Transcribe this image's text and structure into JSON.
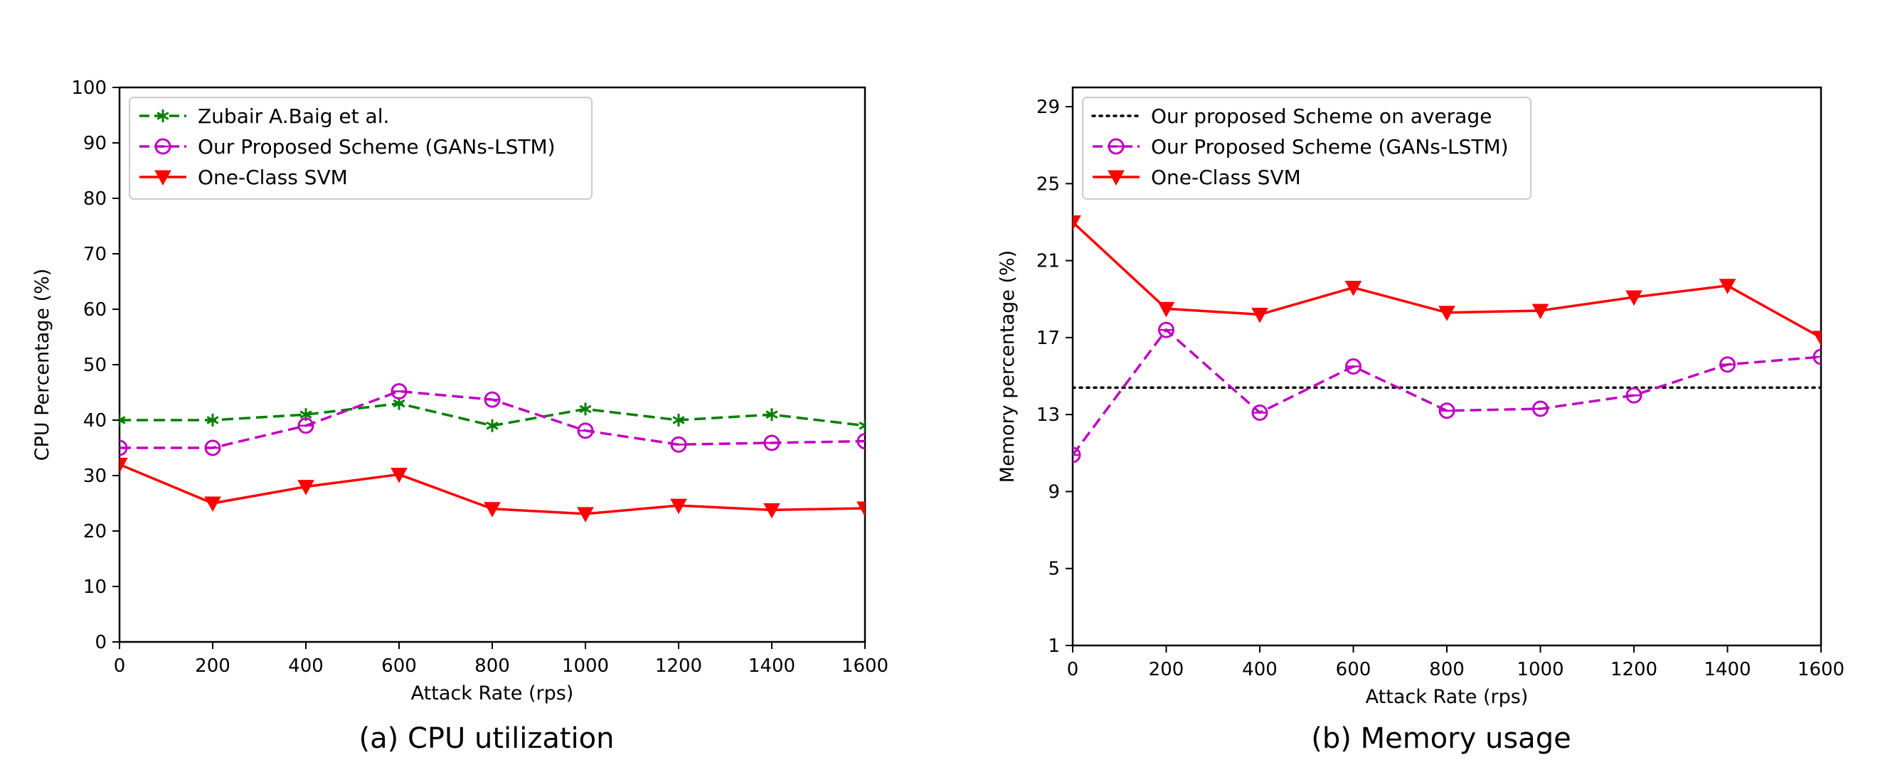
{
  "chart_data": [
    {
      "type": "line",
      "caption": "(a) CPU utilization",
      "xlabel": "Attack Rate (rps)",
      "ylabel": "CPU Percentage (%)",
      "xlim": [
        0,
        1600
      ],
      "ylim": [
        0,
        100
      ],
      "xticks": [
        0,
        200,
        400,
        600,
        800,
        1000,
        1200,
        1400,
        1600
      ],
      "yticks": [
        0,
        10,
        20,
        30,
        40,
        50,
        60,
        70,
        80,
        90,
        100
      ],
      "grid": false,
      "legend_position": "top-left",
      "x": [
        0,
        200,
        400,
        600,
        800,
        1000,
        1200,
        1400,
        1600
      ],
      "series": [
        {
          "name": "Zubair A.Baig et al.",
          "color": "#008000",
          "style": "dashed",
          "marker": "star",
          "values": [
            40,
            40,
            41,
            43,
            39,
            42,
            40,
            41,
            39
          ]
        },
        {
          "name": "Our Proposed Scheme (GANs-LSTM)",
          "color": "#c000c0",
          "style": "dashed",
          "marker": "circle",
          "values": [
            35,
            35,
            39,
            45.2,
            43.7,
            38.1,
            35.6,
            35.9,
            36.2
          ]
        },
        {
          "name": "One-Class SVM",
          "color": "#ff0000",
          "style": "solid",
          "marker": "triangle-down",
          "values": [
            32,
            25,
            28,
            30.2,
            24,
            23.1,
            24.6,
            23.8,
            24.1
          ]
        }
      ]
    },
    {
      "type": "line",
      "caption": "(b) Memory usage",
      "xlabel": "Attack Rate (rps)",
      "ylabel": "Memory percentage (%)",
      "xlim": [
        0,
        1600
      ],
      "ylim": [
        1,
        30
      ],
      "xticks": [
        0,
        200,
        400,
        600,
        800,
        1000,
        1200,
        1400,
        1600
      ],
      "yticks": [
        1,
        5,
        9,
        13,
        17,
        21,
        25,
        29
      ],
      "grid": false,
      "legend_position": "top-left",
      "x": [
        0,
        200,
        400,
        600,
        800,
        1000,
        1200,
        1400,
        1600
      ],
      "series": [
        {
          "name": "Our proposed Scheme on average",
          "color": "#000000",
          "style": "dotted",
          "marker": "none",
          "values": [
            14.4,
            14.4,
            14.4,
            14.4,
            14.4,
            14.4,
            14.4,
            14.4,
            14.4
          ]
        },
        {
          "name": "Our Proposed Scheme (GANs-LSTM)",
          "color": "#c000c0",
          "style": "dashed",
          "marker": "circle",
          "values": [
            10.9,
            17.4,
            13.1,
            15.5,
            13.2,
            13.3,
            14,
            15.6,
            16
          ]
        },
        {
          "name": "One-Class SVM",
          "color": "#ff0000",
          "style": "solid",
          "marker": "triangle-down",
          "values": [
            23,
            18.5,
            18.2,
            19.6,
            18.3,
            18.4,
            19.1,
            19.7,
            17
          ]
        }
      ]
    }
  ]
}
